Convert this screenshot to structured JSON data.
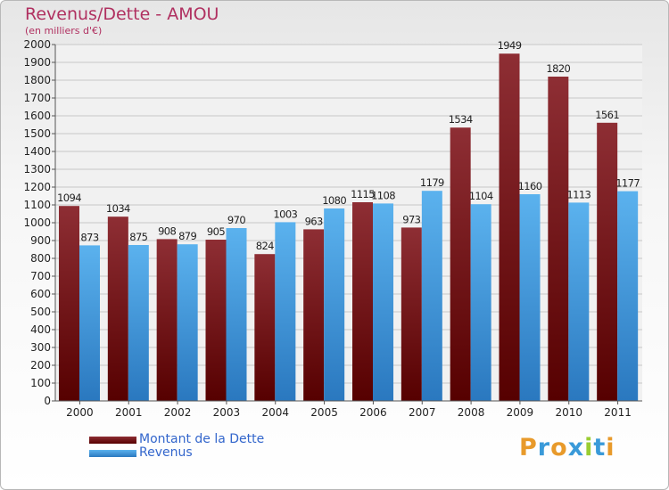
{
  "chart_data": {
    "type": "bar",
    "title": "Revenus/Dette - AMOU",
    "subtitle": "(en milliers d'€)",
    "categories": [
      "2000",
      "2001",
      "2002",
      "2003",
      "2004",
      "2005",
      "2006",
      "2007",
      "2008",
      "2009",
      "2010",
      "2011"
    ],
    "series": [
      {
        "name": "Montant de la Dette",
        "color": "#7a1e24",
        "values": [
          1094,
          1034,
          908,
          905,
          824,
          963,
          1115,
          973,
          1534,
          1949,
          1820,
          1561
        ]
      },
      {
        "name": "Revenus",
        "color": "#4aa3e6",
        "values": [
          873,
          875,
          879,
          970,
          1003,
          1080,
          1108,
          1179,
          1104,
          1160,
          1113,
          1177
        ]
      }
    ],
    "ylim": [
      0,
      2000
    ],
    "yticks": [
      0,
      100,
      200,
      300,
      400,
      500,
      600,
      700,
      800,
      900,
      1000,
      1100,
      1200,
      1300,
      1400,
      1500,
      1600,
      1700,
      1800,
      1900,
      2000
    ],
    "grid": true,
    "legend_position": "bottom-left"
  },
  "logo_text": "Proxiti",
  "logo_colors": [
    "#e89a2b",
    "#3a9ad9",
    "#e89a2b",
    "#3a9ad9",
    "#9acd32",
    "#3a9ad9",
    "#e89a2b"
  ]
}
